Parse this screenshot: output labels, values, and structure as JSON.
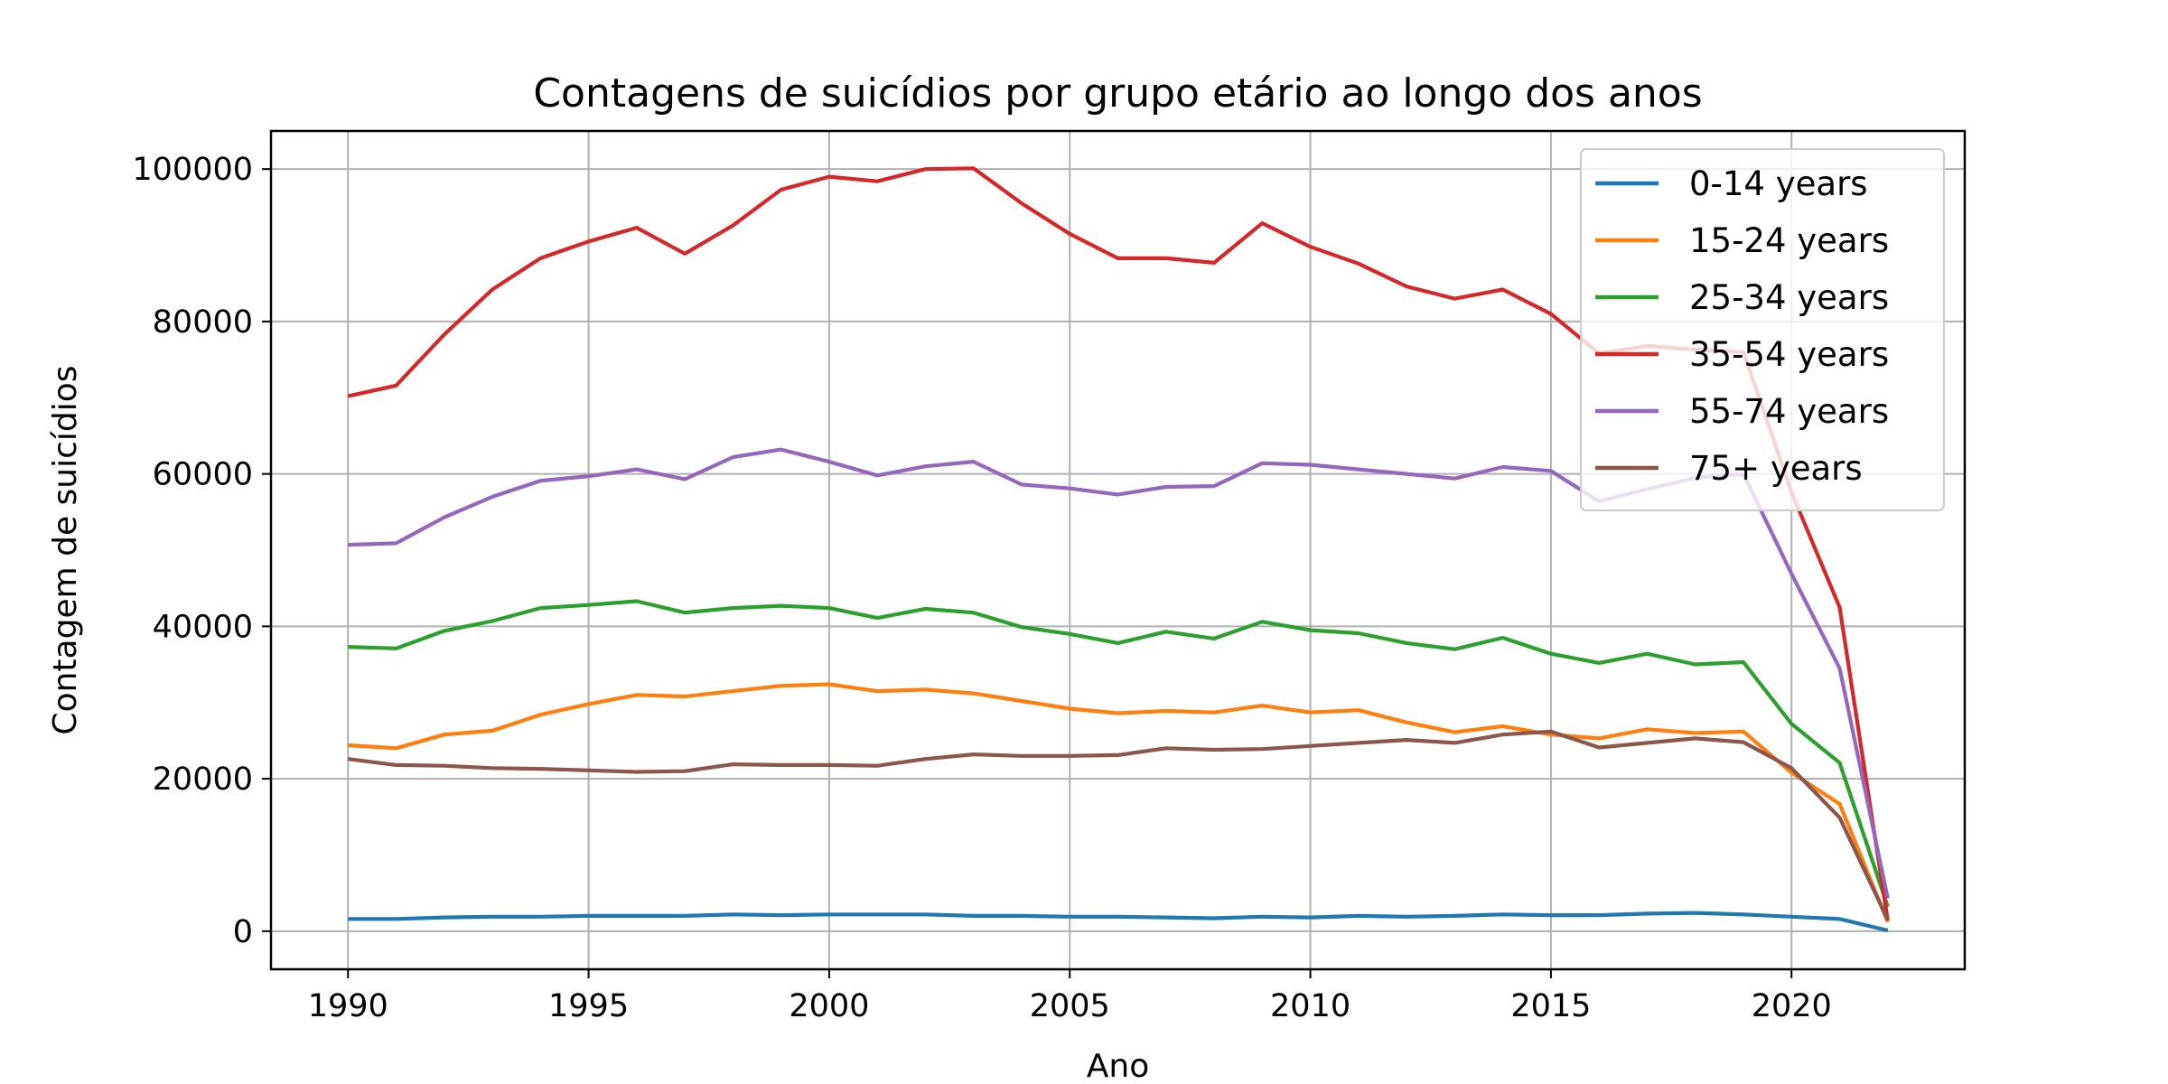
{
  "chart_data": {
    "type": "line",
    "title": "Contagens de suicídios por grupo etário ao longo dos anos",
    "xlabel": "Ano",
    "ylabel": "Contagem de suicídios",
    "xlim": [
      1988.4,
      2023.6
    ],
    "ylim": [
      -5000,
      105000
    ],
    "xticks": [
      1990,
      1995,
      2000,
      2005,
      2010,
      2015,
      2020
    ],
    "yticks": [
      0,
      20000,
      40000,
      60000,
      80000,
      100000
    ],
    "grid": true,
    "legend_position": "top-right",
    "x": [
      1990,
      1991,
      1992,
      1993,
      1994,
      1995,
      1996,
      1997,
      1998,
      1999,
      2000,
      2001,
      2002,
      2003,
      2004,
      2005,
      2006,
      2007,
      2008,
      2009,
      2010,
      2011,
      2012,
      2013,
      2014,
      2015,
      2016,
      2017,
      2018,
      2019,
      2020,
      2021,
      2022
    ],
    "series": [
      {
        "name": "0-14 years",
        "color": "#1f77b4",
        "values": [
          1600,
          1600,
          1800,
          1900,
          1900,
          2000,
          2000,
          2000,
          2200,
          2100,
          2200,
          2200,
          2200,
          2000,
          2000,
          1900,
          1900,
          1800,
          1700,
          1900,
          1800,
          2000,
          1900,
          2000,
          2200,
          2100,
          2100,
          2300,
          2400,
          2200,
          1900,
          1600,
          100
        ]
      },
      {
        "name": "15-24 years",
        "color": "#ff7f0e",
        "values": [
          24400,
          24000,
          25800,
          26300,
          28400,
          29800,
          31000,
          30800,
          31500,
          32200,
          32400,
          31500,
          31700,
          31200,
          30200,
          29200,
          28600,
          28900,
          28700,
          29600,
          28700,
          29000,
          27400,
          26100,
          26900,
          25800,
          25300,
          26500,
          26000,
          26200,
          20800,
          16700,
          1200
        ]
      },
      {
        "name": "25-34 years",
        "color": "#2ca02c",
        "values": [
          37300,
          37100,
          39400,
          40700,
          42400,
          42800,
          43300,
          41800,
          42400,
          42700,
          42400,
          41100,
          42300,
          41800,
          39900,
          39000,
          37800,
          39300,
          38400,
          40600,
          39500,
          39100,
          37800,
          37000,
          38500,
          36400,
          35200,
          36400,
          35000,
          35300,
          27200,
          22100,
          3200
        ]
      },
      {
        "name": "35-54 years",
        "color": "#d62728",
        "values": [
          70200,
          71600,
          78300,
          84200,
          88300,
          90500,
          92300,
          88900,
          92600,
          97300,
          99000,
          98400,
          100000,
          100100,
          95500,
          91500,
          88300,
          88300,
          87700,
          92900,
          89800,
          87600,
          84600,
          83000,
          84200,
          81000,
          75800,
          76800,
          76300,
          76000,
          57600,
          42500,
          1400
        ]
      },
      {
        "name": "55-74 years",
        "color": "#9467bd",
        "values": [
          50700,
          50900,
          54300,
          57000,
          59100,
          59700,
          60600,
          59300,
          62200,
          63200,
          61600,
          59800,
          61000,
          61600,
          58600,
          58100,
          57300,
          58300,
          58400,
          61400,
          61200,
          60600,
          60000,
          59400,
          60900,
          60400,
          56400,
          58000,
          59500,
          60000,
          46900,
          34500,
          4300
        ]
      },
      {
        "name": "75+ years",
        "color": "#8c564b",
        "values": [
          22600,
          21800,
          21700,
          21400,
          21300,
          21100,
          20900,
          21000,
          21900,
          21800,
          21800,
          21700,
          22600,
          23200,
          23000,
          23000,
          23100,
          24000,
          23800,
          23900,
          24300,
          24700,
          25100,
          24700,
          25800,
          26200,
          24100,
          24700,
          25300,
          24800,
          21400,
          14900,
          1500
        ]
      }
    ]
  }
}
